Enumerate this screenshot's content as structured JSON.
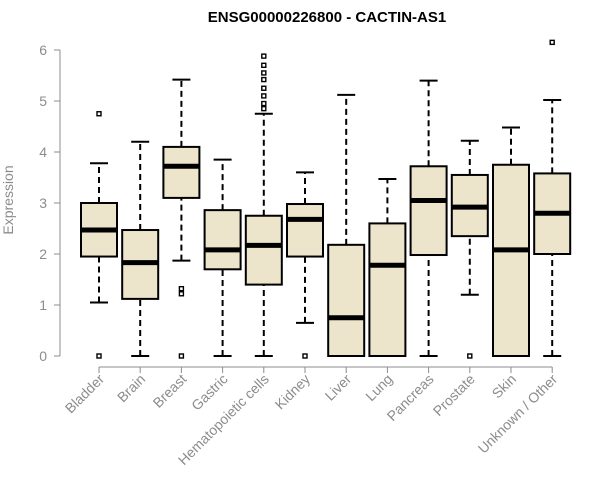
{
  "chart_data": {
    "type": "box",
    "title": "ENSG00000226800 - CACTIN-AS1",
    "xlabel": "",
    "ylabel": "Expression",
    "ylim": [
      0,
      6
    ],
    "yticks": [
      0,
      1,
      2,
      3,
      4,
      5,
      6
    ],
    "categories": [
      "Bladder",
      "Brain",
      "Breast",
      "Gastric",
      "Hematopoietic cells",
      "Kidney",
      "Liver",
      "Lung",
      "Pancreas",
      "Prostate",
      "Skin",
      "Unknown / Other"
    ],
    "boxes": [
      {
        "name": "Bladder",
        "whisker_low": 1.05,
        "q1": 1.95,
        "median": 2.47,
        "q3": 3.0,
        "whisker_high": 3.78,
        "outliers": [
          0.0,
          4.75
        ]
      },
      {
        "name": "Brain",
        "whisker_low": 0.0,
        "q1": 1.12,
        "median": 1.83,
        "q3": 2.47,
        "whisker_high": 4.2,
        "outliers": []
      },
      {
        "name": "Breast",
        "whisker_low": 1.87,
        "q1": 3.1,
        "median": 3.72,
        "q3": 4.1,
        "whisker_high": 5.42,
        "outliers": [
          0.0,
          1.22,
          1.32
        ]
      },
      {
        "name": "Gastric",
        "whisker_low": 0.0,
        "q1": 1.7,
        "median": 2.08,
        "q3": 2.86,
        "whisker_high": 3.85,
        "outliers": []
      },
      {
        "name": "Hematopoietic cells",
        "whisker_low": 0.0,
        "q1": 1.4,
        "median": 2.17,
        "q3": 2.75,
        "whisker_high": 4.75,
        "outliers": [
          4.85,
          4.95,
          5.1,
          5.25,
          5.42,
          5.55,
          5.7,
          5.88
        ]
      },
      {
        "name": "Kidney",
        "whisker_low": 0.65,
        "q1": 1.95,
        "median": 2.68,
        "q3": 2.98,
        "whisker_high": 3.6,
        "outliers": [
          0.0
        ]
      },
      {
        "name": "Liver",
        "whisker_low": 0.0,
        "q1": 0.0,
        "median": 0.75,
        "q3": 2.18,
        "whisker_high": 5.12,
        "outliers": []
      },
      {
        "name": "Lung",
        "whisker_low": 0.0,
        "q1": 0.0,
        "median": 1.78,
        "q3": 2.6,
        "whisker_high": 3.47,
        "outliers": []
      },
      {
        "name": "Pancreas",
        "whisker_low": 0.0,
        "q1": 1.98,
        "median": 3.05,
        "q3": 3.72,
        "whisker_high": 5.4,
        "outliers": []
      },
      {
        "name": "Prostate",
        "whisker_low": 1.2,
        "q1": 2.35,
        "median": 2.92,
        "q3": 3.55,
        "whisker_high": 4.22,
        "outliers": [
          0.0
        ]
      },
      {
        "name": "Skin",
        "whisker_low": 0.0,
        "q1": 0.0,
        "median": 2.08,
        "q3": 3.75,
        "whisker_high": 4.48,
        "outliers": []
      },
      {
        "name": "Unknown / Other",
        "whisker_low": 0.0,
        "q1": 2.0,
        "median": 2.8,
        "q3": 3.58,
        "whisker_high": 5.02,
        "outliers": [
          6.15
        ]
      }
    ]
  }
}
